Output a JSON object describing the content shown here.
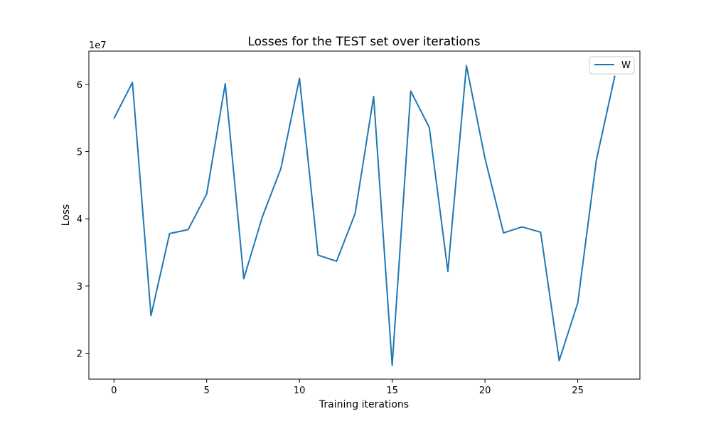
{
  "chart_data": {
    "type": "line",
    "title": "Losses for the TEST set over iterations",
    "xlabel": "Training iterations",
    "ylabel": "Loss",
    "y_offset_text": "1e7",
    "y_scale_factor": 10000000,
    "xlim": [
      -1.35,
      28.35
    ],
    "ylim": [
      16150000,
      64950000
    ],
    "x_ticks": [
      0,
      5,
      10,
      15,
      20,
      25
    ],
    "y_ticks": [
      20000000,
      30000000,
      40000000,
      50000000,
      60000000
    ],
    "y_tick_labels": [
      "2",
      "3",
      "4",
      "5",
      "6"
    ],
    "x_tick_labels": [
      "0",
      "5",
      "10",
      "15",
      "20",
      "25"
    ],
    "grid": false,
    "legend_position": "top-right",
    "series": [
      {
        "name": "W",
        "color": "#1f77b4",
        "x": [
          0,
          1,
          2,
          3,
          4,
          5,
          6,
          7,
          8,
          9,
          10,
          11,
          12,
          13,
          14,
          15,
          16,
          17,
          18,
          19,
          20,
          21,
          22,
          23,
          24,
          25,
          26,
          27
        ],
        "values": [
          54900000,
          60300000,
          25600000,
          37800000,
          38400000,
          43700000,
          60100000,
          31100000,
          40300000,
          47500000,
          60900000,
          34600000,
          33700000,
          40800000,
          58200000,
          18200000,
          59000000,
          53600000,
          32200000,
          62800000,
          49000000,
          37900000,
          38800000,
          38000000,
          18900000,
          27500000,
          48700000,
          61300000
        ]
      }
    ]
  }
}
